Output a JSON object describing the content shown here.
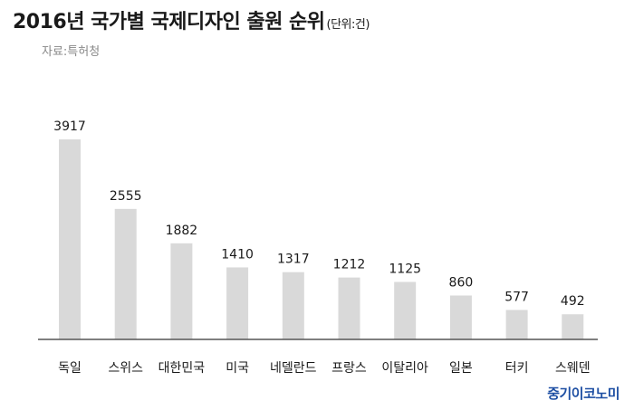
{
  "header": {
    "title": "2016년 국가별 국제디자인 출원 순위",
    "unit": "(단위:건)",
    "source": "자료:특허청"
  },
  "brand": {
    "name": "중기이코노미",
    "color": "#1e4fa3"
  },
  "chart_data": {
    "type": "bar",
    "categories": [
      "독일",
      "스위스",
      "대한민국",
      "미국",
      "네델란드",
      "프랑스",
      "이탈리아",
      "일본",
      "터키",
      "스웨덴"
    ],
    "values": [
      3917,
      2555,
      1882,
      1410,
      1317,
      1212,
      1125,
      860,
      577,
      492
    ],
    "title": "2016년 국가별 국제디자인 출원 순위",
    "unit": "(단위:건)",
    "ylim": [
      0,
      3917
    ],
    "grid": false,
    "legend": "none",
    "bar_color": "#d9d9d9",
    "baseline_color": "#555555"
  }
}
